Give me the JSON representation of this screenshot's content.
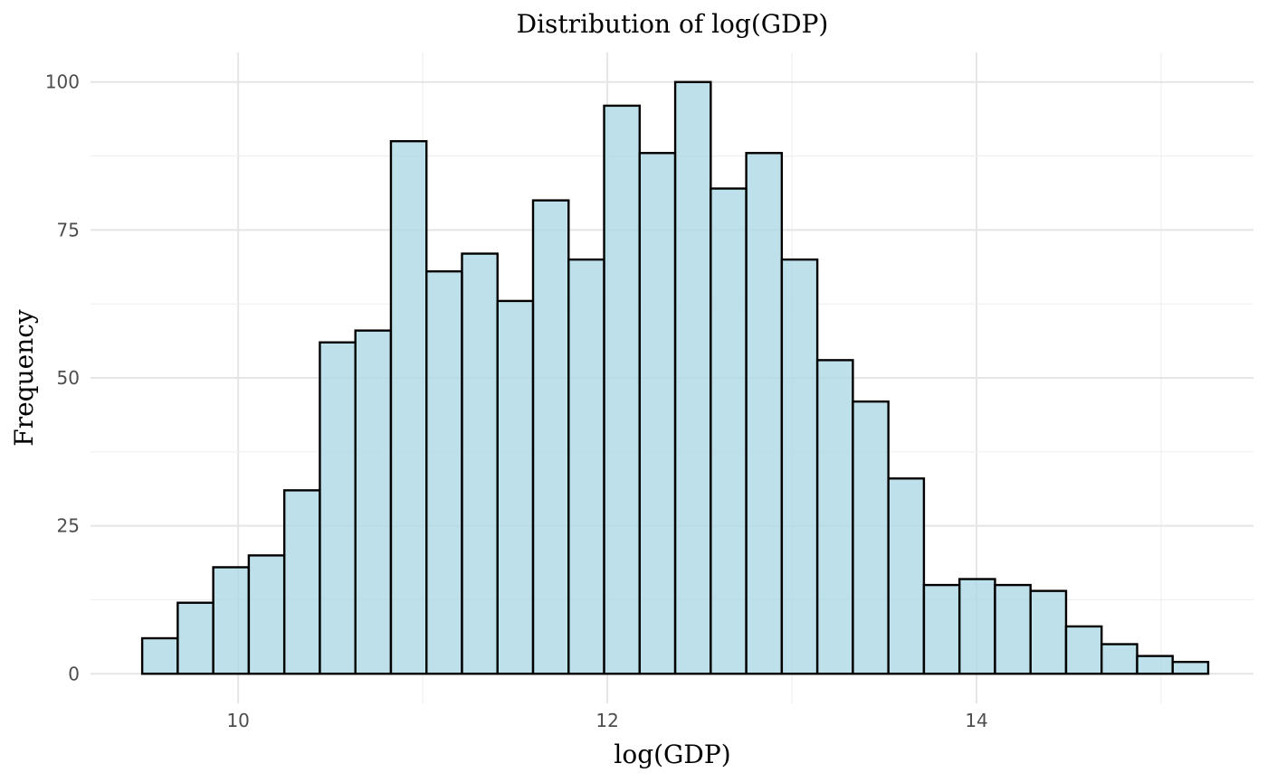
{
  "chart_data": {
    "type": "bar",
    "title": "Distribution of log(GDP)",
    "xlabel": "log(GDP)",
    "ylabel": "Frequency",
    "xlim": [
      9.2,
      15.5
    ],
    "ylim": [
      -5,
      105
    ],
    "x_ticks": [
      10,
      12,
      14
    ],
    "y_ticks": [
      0,
      25,
      50,
      75,
      100
    ],
    "bin_start": 9.48,
    "bin_width": 0.1925,
    "values": [
      6,
      12,
      18,
      20,
      31,
      56,
      58,
      90,
      68,
      71,
      63,
      80,
      70,
      96,
      88,
      100,
      82,
      88,
      70,
      53,
      46,
      33,
      15,
      16,
      15,
      14,
      8,
      5,
      3,
      2
    ],
    "bar_fill": "#add8e6",
    "bar_fill_opacity": 0.8,
    "bar_stroke": "#000000",
    "grid": true,
    "legend": "none"
  }
}
